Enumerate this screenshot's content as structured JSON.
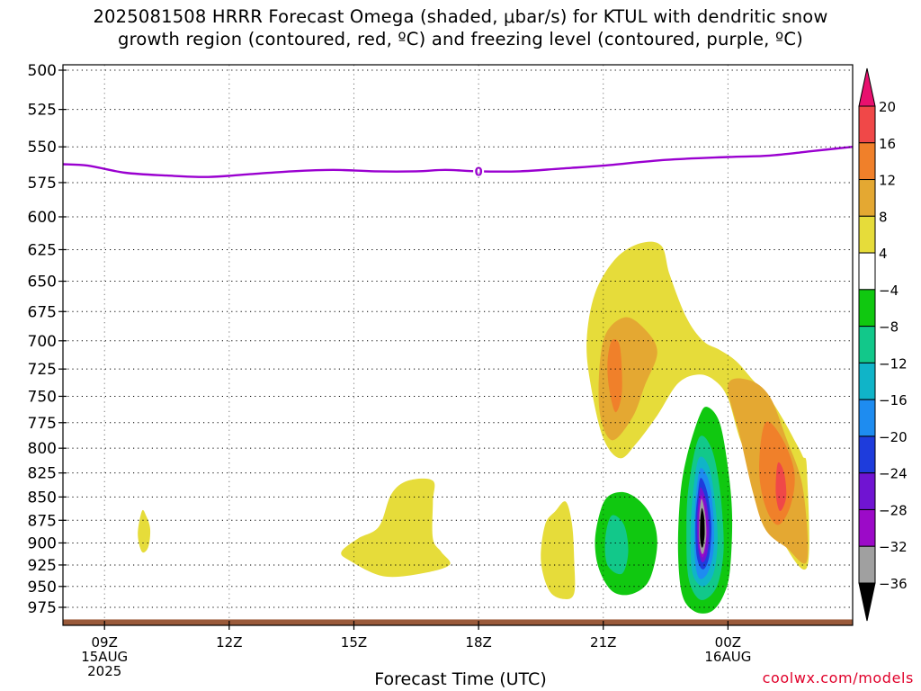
{
  "title": {
    "line1": "2025081508 HRRR Forecast Omega (shaded, μbar/s) for KTUL with dendritic snow",
    "line2": "growth region (contoured, red, ºC) and freezing level (contoured, purple, ºC)"
  },
  "credit": "coolwx.com/models",
  "chart_data": {
    "type": "heatmap",
    "title": "2025081508 HRRR Forecast Omega (shaded, μbar/s) for KTUL with dendritic snow growth region (contoured, red, ºC) and freezing level (contoured, purple, ºC)",
    "xlabel": "Forecast Time (UTC)",
    "ylabel": "",
    "x_ticks": [
      {
        "hour": 9,
        "lines": [
          "09Z",
          "15AUG",
          "2025"
        ]
      },
      {
        "hour": 12,
        "lines": [
          "12Z"
        ]
      },
      {
        "hour": 15,
        "lines": [
          "15Z"
        ]
      },
      {
        "hour": 18,
        "lines": [
          "18Z"
        ]
      },
      {
        "hour": 21,
        "lines": [
          "21Z"
        ]
      },
      {
        "hour": 24,
        "lines": [
          "00Z",
          "16AUG"
        ]
      }
    ],
    "xlim_hours": [
      8,
      27
    ],
    "y_ticks": [
      500,
      525,
      550,
      575,
      600,
      625,
      650,
      675,
      700,
      725,
      750,
      775,
      800,
      825,
      850,
      875,
      900,
      925,
      950,
      975
    ],
    "ylim_hpa": [
      1000,
      500
    ],
    "y_scale": "log-pressure",
    "grid": true,
    "colorbar": {
      "labels": [
        "20",
        "16",
        "12",
        "8",
        "4",
        "−4",
        "−8",
        "−12",
        "−16",
        "−20",
        "−24",
        "−28",
        "−32",
        "−36"
      ],
      "bins": [
        {
          "from": 20,
          "to": null,
          "color": "#e8106e"
        },
        {
          "from": 16,
          "to": 20,
          "color": "#f04848"
        },
        {
          "from": 12,
          "to": 16,
          "color": "#f0802a"
        },
        {
          "from": 8,
          "to": 12,
          "color": "#e4a832"
        },
        {
          "from": 4,
          "to": 8,
          "color": "#e6dc3a"
        },
        {
          "from": -4,
          "to": 4,
          "color": "#ffffff"
        },
        {
          "from": -8,
          "to": -4,
          "color": "#10c810"
        },
        {
          "from": -12,
          "to": -8,
          "color": "#12c88a"
        },
        {
          "from": -16,
          "to": -12,
          "color": "#10b4c8"
        },
        {
          "from": -20,
          "to": -16,
          "color": "#1e8cf0"
        },
        {
          "from": -24,
          "to": -20,
          "color": "#1e3cdc"
        },
        {
          "from": -28,
          "to": -24,
          "color": "#7014d2"
        },
        {
          "from": -32,
          "to": -28,
          "color": "#9c0ac8"
        },
        {
          "from": -36,
          "to": -32,
          "color": "#a0a0a0"
        },
        {
          "from": null,
          "to": -36,
          "color": "#000000"
        }
      ]
    },
    "regions": [
      {
        "name": "omega-4-8-a",
        "color": "#e6dc3a",
        "points": [
          [
            25.9,
            822
          ],
          [
            25.8,
            808
          ],
          [
            25.6,
            792
          ],
          [
            25.3,
            770
          ],
          [
            25.0,
            752
          ],
          [
            24.6,
            735
          ],
          [
            24.2,
            718
          ],
          [
            23.8,
            708
          ],
          [
            23.4,
            700
          ],
          [
            23.0,
            680
          ],
          [
            22.6,
            645
          ],
          [
            22.4,
            622
          ],
          [
            21.9,
            620
          ],
          [
            21.3,
            632
          ],
          [
            20.8,
            660
          ],
          [
            20.6,
            700
          ],
          [
            20.7,
            740
          ],
          [
            21.0,
            790
          ],
          [
            21.4,
            810
          ],
          [
            21.8,
            795
          ],
          [
            22.3,
            768
          ],
          [
            22.8,
            738
          ],
          [
            23.3,
            730
          ],
          [
            23.7,
            736
          ],
          [
            24.0,
            752
          ],
          [
            24.3,
            792
          ],
          [
            24.7,
            830
          ],
          [
            25.2,
            888
          ],
          [
            25.9,
            928
          ]
        ]
      },
      {
        "name": "omega-4-8-b",
        "color": "#e6dc3a",
        "points": [
          [
            20.3,
            920
          ],
          [
            20.3,
            958
          ],
          [
            20.05,
            965
          ],
          [
            19.7,
            955
          ],
          [
            19.5,
            920
          ],
          [
            19.6,
            880
          ],
          [
            19.85,
            865
          ],
          [
            20.1,
            855
          ],
          [
            20.25,
            880
          ]
        ]
      },
      {
        "name": "omega-4-8-c",
        "color": "#e6dc3a",
        "points": [
          [
            14.9,
            920
          ],
          [
            15.7,
            938
          ],
          [
            16.6,
            935
          ],
          [
            17.3,
            925
          ],
          [
            17.1,
            910
          ],
          [
            16.9,
            895
          ],
          [
            16.9,
            855
          ],
          [
            16.9,
            833
          ],
          [
            16.3,
            833
          ],
          [
            15.9,
            847
          ],
          [
            15.6,
            882
          ],
          [
            15.1,
            895
          ],
          [
            14.7,
            910
          ]
        ]
      },
      {
        "name": "omega-4-8-d",
        "color": "#e6dc3a",
        "points": [
          [
            9.9,
            865
          ],
          [
            10.0,
            870
          ],
          [
            10.1,
            885
          ],
          [
            10.05,
            905
          ],
          [
            9.9,
            910
          ],
          [
            9.8,
            890
          ]
        ]
      },
      {
        "name": "omega-8-12-a",
        "color": "#e4a832",
        "points": [
          [
            21.0,
            700
          ],
          [
            21.5,
            680
          ],
          [
            22.0,
            690
          ],
          [
            22.3,
            710
          ],
          [
            22.0,
            740
          ],
          [
            21.7,
            770
          ],
          [
            21.2,
            792
          ],
          [
            20.9,
            760
          ]
        ]
      },
      {
        "name": "omega-8-12-b",
        "color": "#e4a832",
        "points": [
          [
            24.0,
            740
          ],
          [
            24.5,
            735
          ],
          [
            25.0,
            750
          ],
          [
            25.4,
            790
          ],
          [
            25.8,
            840
          ],
          [
            25.9,
            920
          ],
          [
            25.4,
            905
          ],
          [
            24.9,
            885
          ],
          [
            24.6,
            845
          ],
          [
            24.3,
            790
          ]
        ]
      },
      {
        "name": "omega-12-16-a",
        "color": "#f0802a",
        "points": [
          [
            21.2,
            700
          ],
          [
            21.4,
            705
          ],
          [
            21.45,
            745
          ],
          [
            21.3,
            765
          ],
          [
            21.15,
            745
          ],
          [
            21.1,
            720
          ]
        ]
      },
      {
        "name": "omega-12-16-b",
        "color": "#f0802a",
        "points": [
          [
            24.9,
            775
          ],
          [
            25.3,
            790
          ],
          [
            25.6,
            825
          ],
          [
            25.5,
            860
          ],
          [
            25.2,
            880
          ],
          [
            24.9,
            860
          ],
          [
            24.75,
            820
          ]
        ]
      },
      {
        "name": "omega-16-20-b",
        "color": "#f04848",
        "points": [
          [
            25.2,
            815
          ],
          [
            25.35,
            825
          ],
          [
            25.4,
            850
          ],
          [
            25.25,
            865
          ],
          [
            25.15,
            845
          ]
        ]
      },
      {
        "name": "omega-neg4-8-a",
        "color": "#10c810",
        "points": [
          [
            21.1,
            850
          ],
          [
            21.5,
            845
          ],
          [
            21.9,
            855
          ],
          [
            22.2,
            875
          ],
          [
            22.3,
            900
          ],
          [
            22.2,
            930
          ],
          [
            22.0,
            950
          ],
          [
            21.6,
            960
          ],
          [
            21.2,
            955
          ],
          [
            20.9,
            930
          ],
          [
            20.8,
            900
          ],
          [
            20.9,
            870
          ]
        ]
      },
      {
        "name": "omega-neg4-8-b",
        "color": "#10c810",
        "points": [
          [
            23.3,
            770
          ],
          [
            23.5,
            760
          ],
          [
            23.8,
            775
          ],
          [
            24.0,
            820
          ],
          [
            24.1,
            870
          ],
          [
            24.05,
            930
          ],
          [
            23.9,
            960
          ],
          [
            23.6,
            980
          ],
          [
            23.2,
            980
          ],
          [
            22.9,
            960
          ],
          [
            22.8,
            910
          ],
          [
            22.85,
            850
          ],
          [
            23.0,
            810
          ]
        ]
      },
      {
        "name": "omega-neg8-12-a",
        "color": "#12c88a",
        "points": [
          [
            21.2,
            870
          ],
          [
            21.5,
            880
          ],
          [
            21.6,
            910
          ],
          [
            21.45,
            935
          ],
          [
            21.1,
            925
          ],
          [
            21.05,
            895
          ]
        ]
      },
      {
        "name": "omega-neg8-12-b",
        "color": "#12c88a",
        "points": [
          [
            23.3,
            790
          ],
          [
            23.6,
            800
          ],
          [
            23.8,
            840
          ],
          [
            23.9,
            900
          ],
          [
            23.8,
            940
          ],
          [
            23.6,
            960
          ],
          [
            23.3,
            965
          ],
          [
            23.05,
            940
          ],
          [
            23.0,
            890
          ],
          [
            23.05,
            840
          ]
        ]
      },
      {
        "name": "omega-neg12-16",
        "color": "#10b4c8",
        "points": [
          [
            23.3,
            810
          ],
          [
            23.55,
            820
          ],
          [
            23.7,
            860
          ],
          [
            23.75,
            900
          ],
          [
            23.65,
            935
          ],
          [
            23.4,
            950
          ],
          [
            23.15,
            935
          ],
          [
            23.1,
            895
          ],
          [
            23.15,
            850
          ]
        ]
      },
      {
        "name": "omega-neg16-20",
        "color": "#1e8cf0",
        "points": [
          [
            23.35,
            820
          ],
          [
            23.55,
            835
          ],
          [
            23.65,
            870
          ],
          [
            23.65,
            910
          ],
          [
            23.5,
            935
          ],
          [
            23.3,
            940
          ],
          [
            23.2,
            915
          ],
          [
            23.2,
            870
          ],
          [
            23.25,
            840
          ]
        ]
      },
      {
        "name": "omega-neg20-24",
        "color": "#1e3cdc",
        "points": [
          [
            23.35,
            830
          ],
          [
            23.5,
            845
          ],
          [
            23.6,
            880
          ],
          [
            23.55,
            915
          ],
          [
            23.4,
            930
          ],
          [
            23.25,
            915
          ],
          [
            23.22,
            875
          ],
          [
            23.28,
            845
          ]
        ]
      },
      {
        "name": "omega-neg24-28",
        "color": "#7014d2",
        "points": [
          [
            23.35,
            840
          ],
          [
            23.48,
            855
          ],
          [
            23.55,
            885
          ],
          [
            23.5,
            912
          ],
          [
            23.38,
            922
          ],
          [
            23.28,
            905
          ],
          [
            23.26,
            875
          ],
          [
            23.3,
            850
          ]
        ]
      },
      {
        "name": "omega-neg28-32",
        "color": "#9c0ac8",
        "points": [
          [
            23.36,
            848
          ],
          [
            23.46,
            862
          ],
          [
            23.5,
            888
          ],
          [
            23.45,
            910
          ],
          [
            23.37,
            916
          ],
          [
            23.3,
            900
          ],
          [
            23.29,
            875
          ],
          [
            23.32,
            858
          ]
        ]
      },
      {
        "name": "omega-neg32-36",
        "color": "#a0a0a0",
        "points": [
          [
            23.37,
            852
          ],
          [
            23.45,
            868
          ],
          [
            23.48,
            890
          ],
          [
            23.43,
            908
          ],
          [
            23.37,
            912
          ],
          [
            23.31,
            898
          ],
          [
            23.31,
            875
          ],
          [
            23.33,
            860
          ]
        ]
      },
      {
        "name": "omega-below-36",
        "color": "#000000",
        "points": [
          [
            23.38,
            862
          ],
          [
            23.43,
            873
          ],
          [
            23.44,
            890
          ],
          [
            23.41,
            902
          ],
          [
            23.37,
            905
          ],
          [
            23.33,
            895
          ],
          [
            23.33,
            878
          ],
          [
            23.35,
            867
          ]
        ]
      }
    ],
    "freezing_level": {
      "color": "#9a00d0",
      "points": [
        [
          8,
          562
        ],
        [
          8.6,
          563
        ],
        [
          9.5,
          568
        ],
        [
          10.5,
          570
        ],
        [
          11.5,
          571
        ],
        [
          12.5,
          569
        ],
        [
          13.5,
          567
        ],
        [
          14.5,
          566
        ],
        [
          15.5,
          567
        ],
        [
          16.5,
          567
        ],
        [
          17.2,
          566
        ],
        [
          18.0,
          567
        ],
        [
          19.0,
          567
        ],
        [
          20.0,
          565
        ],
        [
          21.0,
          563
        ],
        [
          22.5,
          559
        ],
        [
          24.0,
          557
        ],
        [
          25.0,
          556
        ],
        [
          26.0,
          553
        ],
        [
          27,
          550
        ]
      ],
      "label": "0",
      "label_at": [
        18.0,
        567
      ]
    },
    "surface_level": {
      "color": "#9a5a3a",
      "hpa": 992
    }
  }
}
